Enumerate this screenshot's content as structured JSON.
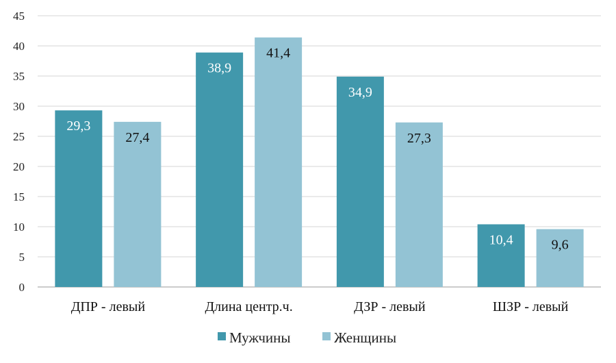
{
  "chart_data": {
    "type": "bar",
    "categories": [
      "ДПР - левый",
      "Длина центр.ч.",
      "ДЗР - левый",
      "ШЗР - левый"
    ],
    "series": [
      {
        "name": "Мужчины",
        "values": [
          29.3,
          38.9,
          34.9,
          10.4
        ],
        "labels": [
          "29,3",
          "38,9",
          "34,9",
          "10,4"
        ],
        "color": "#4198ac",
        "label_color": "#ffffff"
      },
      {
        "name": "Женщины",
        "values": [
          27.4,
          41.4,
          27.3,
          9.6
        ],
        "labels": [
          "27,4",
          "41,4",
          "27,3",
          "9,6"
        ],
        "color": "#93c3d4",
        "label_color": "#111111"
      }
    ],
    "ylim": [
      0,
      45
    ],
    "yticks": [
      0,
      5,
      10,
      15,
      20,
      25,
      30,
      35,
      40,
      45
    ],
    "grid": true,
    "legend_position": "bottom",
    "title": "",
    "xlabel": "",
    "ylabel": ""
  }
}
